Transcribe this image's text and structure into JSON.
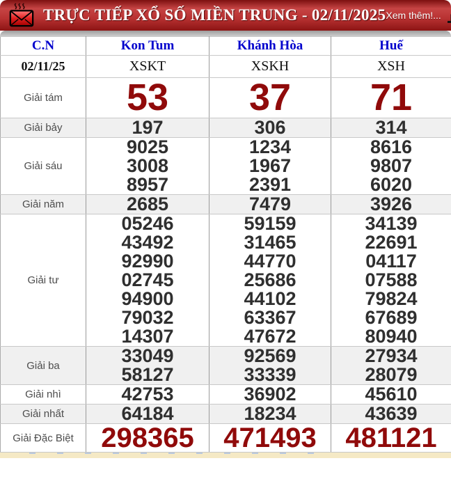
{
  "header": {
    "title": "TRỰC TIẾP XỔ SỐ MIỀN TRUNG - 02/11/2025",
    "more_label": "Xem thêm!...",
    "envelope_icon": "envelope-icon",
    "chart_icon": "bar-chart-icon"
  },
  "colors": {
    "header_red": "#b83232",
    "prize_number_red": "#900a0a",
    "number_dark": "#2f2f2f",
    "link_blue": "#0202cd",
    "shaded_row": "#f0f0f0",
    "bottom_strip_cream": "#f5e9c5"
  },
  "table": {
    "columns": [
      "C.N",
      "Kon Tum",
      "Khánh Hòa",
      "Huế"
    ],
    "station_row": {
      "date": "02/11/25",
      "codes": [
        "XSKT",
        "XSKH",
        "XSH"
      ]
    },
    "prizes": [
      {
        "label": "Giải tám",
        "style": "big-red",
        "shaded": false,
        "values": [
          [
            "53"
          ],
          [
            "37"
          ],
          [
            "71"
          ]
        ]
      },
      {
        "label": "Giải bảy",
        "style": "",
        "shaded": true,
        "values": [
          [
            "197"
          ],
          [
            "306"
          ],
          [
            "314"
          ]
        ]
      },
      {
        "label": "Giải sáu",
        "style": "",
        "shaded": false,
        "values": [
          [
            "9025",
            "3008",
            "8957"
          ],
          [
            "1234",
            "1967",
            "2391"
          ],
          [
            "8616",
            "9807",
            "6020"
          ]
        ]
      },
      {
        "label": "Giải năm",
        "style": "",
        "shaded": true,
        "values": [
          [
            "2685"
          ],
          [
            "7479"
          ],
          [
            "3926"
          ]
        ]
      },
      {
        "label": "Giải tư",
        "style": "",
        "shaded": false,
        "values": [
          [
            "05246",
            "43492",
            "92990",
            "02745",
            "94900",
            "79032",
            "14307"
          ],
          [
            "59159",
            "31465",
            "44770",
            "25686",
            "44102",
            "63367",
            "47672"
          ],
          [
            "34139",
            "22691",
            "04117",
            "07588",
            "79824",
            "67689",
            "80940"
          ]
        ]
      },
      {
        "label": "Giải ba",
        "style": "",
        "shaded": true,
        "values": [
          [
            "33049",
            "58127"
          ],
          [
            "92569",
            "33339"
          ],
          [
            "27934",
            "28079"
          ]
        ]
      },
      {
        "label": "Giải nhì",
        "style": "",
        "shaded": false,
        "values": [
          [
            "42753"
          ],
          [
            "36902"
          ],
          [
            "45610"
          ]
        ]
      },
      {
        "label": "Giải nhất",
        "style": "",
        "shaded": true,
        "values": [
          [
            "64184"
          ],
          [
            "18234"
          ],
          [
            "43639"
          ]
        ]
      },
      {
        "label": "Giải Đặc Biệt",
        "style": "special-red",
        "shaded": false,
        "values": [
          [
            "298365"
          ],
          [
            "471493"
          ],
          [
            "481121"
          ]
        ]
      }
    ]
  }
}
